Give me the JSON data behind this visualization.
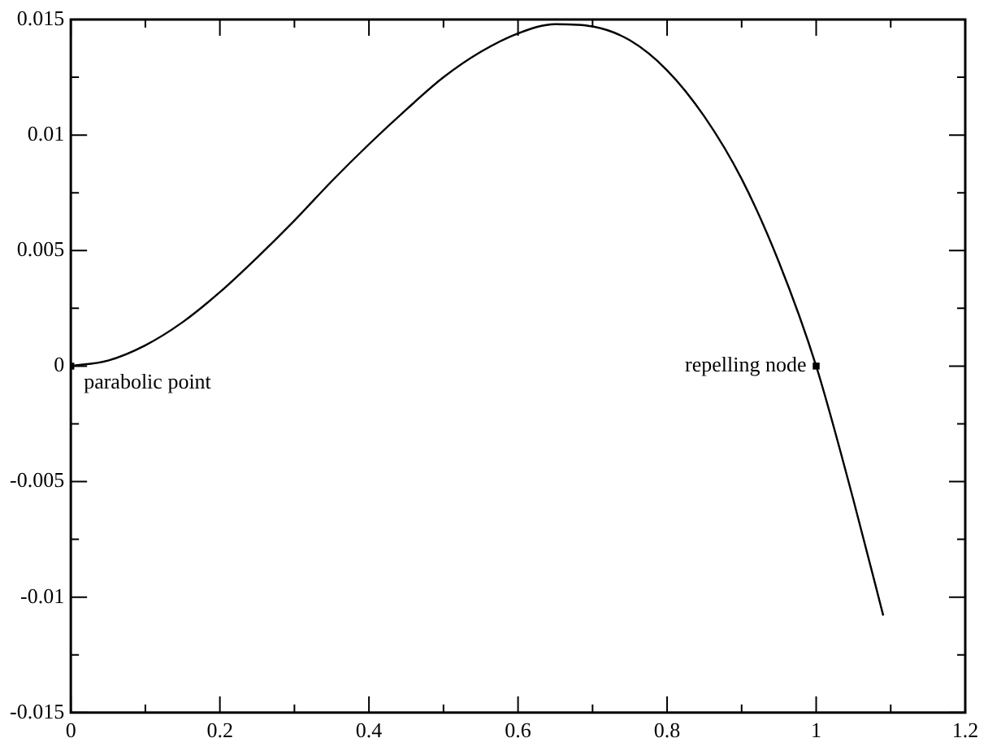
{
  "chart_data": {
    "type": "line",
    "xlim": [
      0,
      1.2
    ],
    "xticks": [
      0,
      0.2,
      0.4,
      0.6,
      0.8,
      1,
      1.2
    ],
    "ylim": [
      -0.015,
      0.015
    ],
    "yticks": [
      -0.015,
      -0.01,
      -0.005,
      0,
      0.005,
      0.01,
      0.015
    ],
    "series": [
      {
        "type": "line",
        "color": "#000000",
        "marker": "none",
        "line_style": "solid",
        "x": [
          0,
          0.05,
          0.1,
          0.15,
          0.2,
          0.25,
          0.3,
          0.35,
          0.4,
          0.45,
          0.5,
          0.55,
          0.6,
          0.65,
          0.7,
          0.75,
          0.8,
          0.85,
          0.9,
          0.95,
          1,
          1.05,
          1.09
        ],
        "values": [
          0,
          0.00024,
          0.0009,
          0.0019,
          0.0032,
          0.0047,
          0.0063,
          0.008,
          0.0096,
          0.0111,
          0.0125,
          0.0136,
          0.0144,
          0.0148,
          0.0147,
          0.0141,
          0.0128,
          0.0108,
          0.0081,
          0.0045,
          0,
          -0.0058,
          -0.0108
        ]
      },
      {
        "type": "scatter",
        "color": "#000000",
        "marker": "square",
        "x": [
          0,
          1
        ],
        "values": [
          0,
          0
        ]
      }
    ],
    "annotations": [
      {
        "text": "parabolic point",
        "x": 0,
        "y": 0
      },
      {
        "text": "repelling node",
        "x": 1,
        "y": 0
      }
    ]
  }
}
